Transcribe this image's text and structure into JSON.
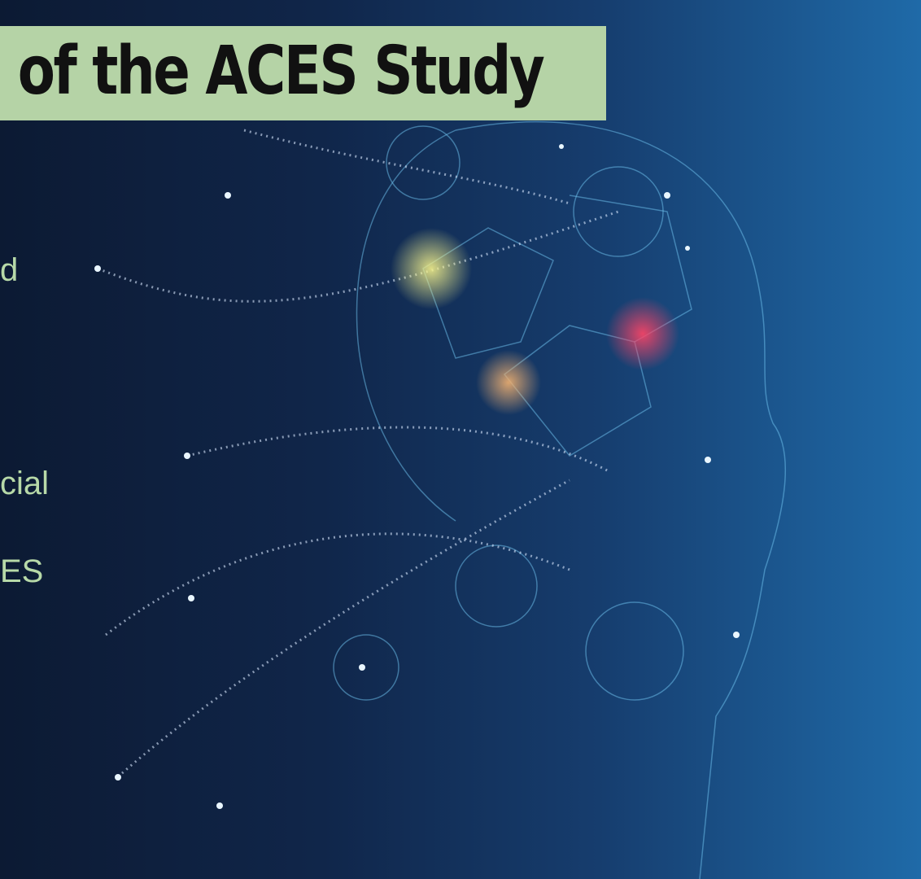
{
  "title": "of the ACES Study",
  "body_fragments": [
    "d",
    "cial",
    "ES"
  ]
}
